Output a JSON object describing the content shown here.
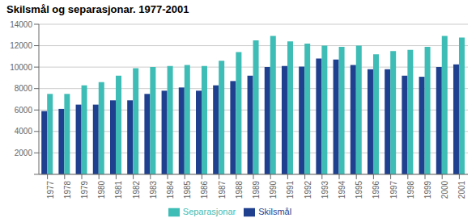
{
  "chart_data": {
    "type": "bar",
    "title": "Skilsmål og separasjonar. 1977-2001",
    "categories": [
      "1977",
      "1978",
      "1979",
      "1980",
      "1981",
      "1982",
      "1983",
      "1984",
      "1985",
      "1986",
      "1987",
      "1988",
      "1989",
      "1990",
      "1991",
      "1992",
      "1993",
      "1994",
      "1995",
      "1996",
      "1997",
      "1998",
      "1999",
      "2000",
      "2001"
    ],
    "series": [
      {
        "name": "Skilsmål",
        "color": "#1f3f8f",
        "values": [
          5900,
          6100,
          6500,
          6500,
          6900,
          6900,
          7500,
          7800,
          8100,
          7800,
          8300,
          8700,
          9200,
          10000,
          10100,
          10050,
          10800,
          10700,
          10200,
          9800,
          9800,
          9200,
          9100,
          10000,
          10250
        ]
      },
      {
        "name": "Separasjonar",
        "color": "#3dbdb5",
        "values": [
          7500,
          7500,
          8300,
          8600,
          9200,
          9900,
          10000,
          10100,
          10200,
          10100,
          10600,
          11400,
          12500,
          12900,
          12400,
          12200,
          12000,
          11900,
          12000,
          11200,
          11500,
          11600,
          11900,
          12900,
          12750
        ]
      }
    ],
    "ylim": [
      0,
      14000
    ],
    "yticks": [
      {
        "value": 0,
        "label": ""
      },
      2000,
      4000,
      6000,
      8000,
      10000,
      12000,
      14000
    ],
    "grid": true,
    "legend": "bottom"
  }
}
